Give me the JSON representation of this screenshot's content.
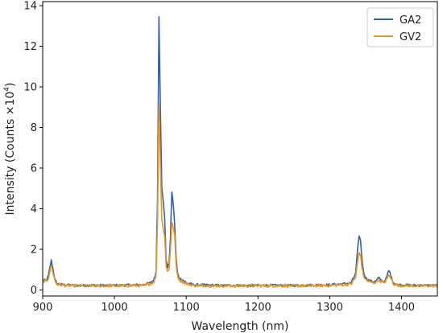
{
  "chart_data": {
    "type": "line",
    "title": "",
    "xlabel": "Wavelength (nm)",
    "ylabel_main": "Intensity (Counts ×10",
    "ylabel_exp": "4",
    "ylabel_close": ")",
    "xlim": [
      900,
      1450
    ],
    "ylim": [
      -0.3,
      14.2
    ],
    "x_ticks": [
      900,
      1000,
      1100,
      1200,
      1300,
      1400
    ],
    "y_ticks": [
      0,
      2,
      4,
      6,
      8,
      10,
      12,
      14
    ],
    "x_tick_labels": [
      "900",
      "1000",
      "1100",
      "1200",
      "1300",
      "1400"
    ],
    "y_tick_labels": [
      "0",
      "2",
      "4",
      "6",
      "8",
      "10",
      "12",
      "14"
    ],
    "grid": false,
    "legend_position": "top-right",
    "series": [
      {
        "name": "GA2",
        "color": "#3a5ea8",
        "baseline": 0.22,
        "x": [
          900,
          905,
          908,
          910,
          912,
          914,
          917,
          920,
          930,
          950,
          1000,
          1040,
          1050,
          1055,
          1058,
          1060,
          1062,
          1064,
          1066,
          1068,
          1070,
          1072,
          1074,
          1076,
          1078,
          1080,
          1082,
          1084,
          1086,
          1088,
          1090,
          1092,
          1095,
          1100,
          1110,
          1150,
          1200,
          1250,
          1300,
          1320,
          1330,
          1336,
          1339,
          1341,
          1343,
          1345,
          1347,
          1350,
          1355,
          1360,
          1365,
          1368,
          1371,
          1375,
          1378,
          1380,
          1382,
          1384,
          1386,
          1389,
          1395,
          1420,
          1450
        ],
        "y": [
          0.5,
          0.45,
          0.7,
          1.1,
          1.45,
          1.1,
          0.5,
          0.3,
          0.25,
          0.22,
          0.22,
          0.25,
          0.35,
          0.5,
          0.9,
          4.5,
          13.5,
          9.0,
          5.0,
          4.4,
          3.5,
          1.5,
          1.1,
          1.3,
          2.5,
          4.85,
          4.2,
          3.2,
          1.5,
          0.8,
          0.6,
          0.55,
          0.5,
          0.35,
          0.25,
          0.22,
          0.22,
          0.22,
          0.25,
          0.3,
          0.35,
          0.8,
          2.0,
          2.7,
          2.4,
          1.5,
          0.9,
          0.6,
          0.45,
          0.4,
          0.45,
          0.6,
          0.5,
          0.4,
          0.5,
          0.7,
          0.95,
          0.85,
          0.6,
          0.35,
          0.25,
          0.22,
          0.22
        ]
      },
      {
        "name": "GV2",
        "color": "#e39a24",
        "baseline": 0.2,
        "x": [
          900,
          905,
          908,
          910,
          912,
          914,
          917,
          920,
          930,
          950,
          1000,
          1040,
          1050,
          1055,
          1058,
          1060,
          1062,
          1064,
          1066,
          1068,
          1070,
          1072,
          1074,
          1076,
          1078,
          1080,
          1082,
          1084,
          1086,
          1088,
          1090,
          1092,
          1095,
          1100,
          1110,
          1150,
          1200,
          1250,
          1300,
          1320,
          1330,
          1336,
          1339,
          1341,
          1343,
          1345,
          1347,
          1350,
          1355,
          1360,
          1365,
          1368,
          1371,
          1375,
          1378,
          1380,
          1382,
          1384,
          1386,
          1389,
          1395,
          1420,
          1450
        ],
        "y": [
          0.45,
          0.4,
          0.6,
          0.9,
          1.2,
          0.9,
          0.45,
          0.28,
          0.22,
          0.2,
          0.2,
          0.22,
          0.3,
          0.4,
          0.7,
          3.2,
          9.2,
          6.2,
          3.5,
          3.0,
          2.6,
          1.2,
          0.9,
          1.0,
          2.0,
          3.3,
          3.1,
          2.6,
          1.2,
          0.7,
          0.5,
          0.45,
          0.4,
          0.3,
          0.22,
          0.2,
          0.2,
          0.2,
          0.22,
          0.25,
          0.3,
          0.6,
          1.4,
          1.85,
          1.7,
          1.1,
          0.7,
          0.5,
          0.4,
          0.35,
          0.38,
          0.5,
          0.42,
          0.35,
          0.42,
          0.55,
          0.75,
          0.65,
          0.5,
          0.3,
          0.22,
          0.2,
          0.2
        ]
      }
    ]
  }
}
